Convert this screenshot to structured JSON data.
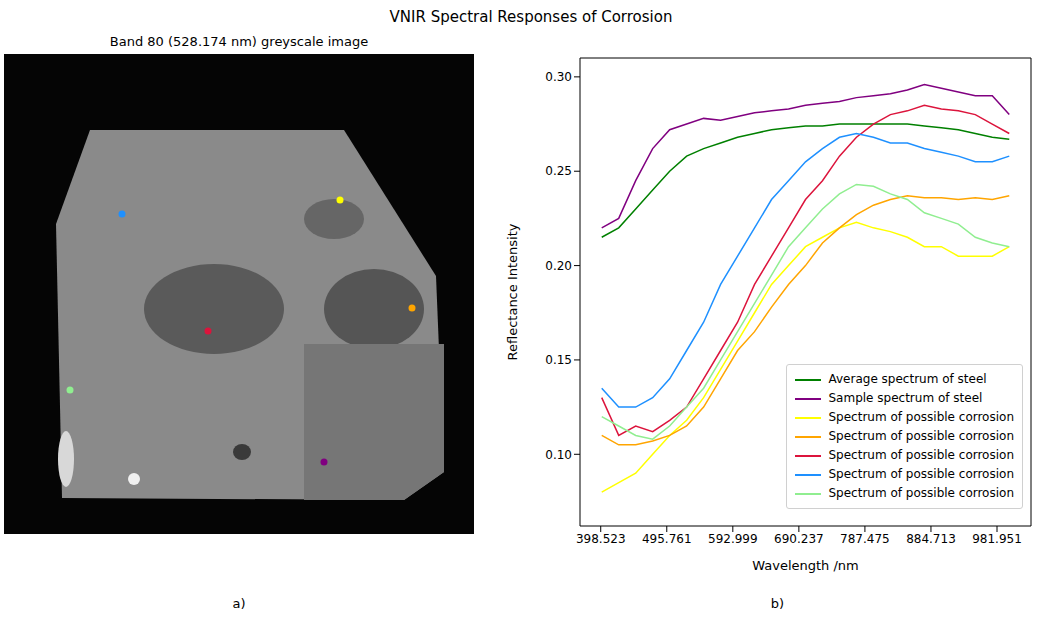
{
  "title": "VNIR Spectral Responses of Corrosion",
  "image_panel": {
    "label": "a)",
    "title": "Band 80 (528.174 nm) greyscale image"
  },
  "chart_data": {
    "label": "b)",
    "type": "line",
    "x_label": "Wavelength /nm",
    "y_label": "Reflectance Intensity",
    "xlim": [
      368,
      1032
    ],
    "ylim": [
      0.062,
      0.31
    ],
    "xticks": [
      398.523,
      495.761,
      592.999,
      690.237,
      787.475,
      884.713,
      981.951
    ],
    "yticks": [
      {
        "value": 0.1,
        "label": "0.10"
      },
      0.15,
      {
        "value": 0.2,
        "label": "0.20"
      },
      0.25,
      {
        "value": 0.3,
        "label": "0.30"
      }
    ],
    "legend": "lower right",
    "x": [
      400,
      425,
      450,
      475,
      500,
      525,
      550,
      575,
      600,
      625,
      650,
      675,
      700,
      725,
      750,
      775,
      800,
      825,
      850,
      875,
      900,
      925,
      950,
      975,
      1000
    ],
    "series": [
      {
        "name": "Average spectrum of steel",
        "color": "#008000",
        "values": [
          0.215,
          0.22,
          0.23,
          0.24,
          0.25,
          0.258,
          0.262,
          0.265,
          0.268,
          0.27,
          0.272,
          0.273,
          0.274,
          0.274,
          0.275,
          0.275,
          0.275,
          0.275,
          0.275,
          0.274,
          0.273,
          0.272,
          0.27,
          0.268,
          0.267
        ]
      },
      {
        "name": "Sample spectrum of steel",
        "color": "#800080",
        "values": [
          0.22,
          0.225,
          0.245,
          0.262,
          0.272,
          0.275,
          0.278,
          0.277,
          0.279,
          0.281,
          0.282,
          0.283,
          0.285,
          0.286,
          0.287,
          0.289,
          0.29,
          0.291,
          0.293,
          0.296,
          0.294,
          0.292,
          0.29,
          0.29,
          0.28
        ]
      },
      {
        "name": "Spectrum of possible corrosion",
        "color": "#ffff00",
        "values": [
          0.08,
          0.085,
          0.09,
          0.1,
          0.11,
          0.118,
          0.13,
          0.145,
          0.16,
          0.175,
          0.19,
          0.2,
          0.21,
          0.215,
          0.22,
          0.223,
          0.22,
          0.218,
          0.215,
          0.21,
          0.21,
          0.205,
          0.205,
          0.205,
          0.21
        ]
      },
      {
        "name": "Spectrum of possible corrosion",
        "color": "#ffa500",
        "values": [
          0.11,
          0.105,
          0.105,
          0.107,
          0.11,
          0.115,
          0.125,
          0.14,
          0.155,
          0.165,
          0.178,
          0.19,
          0.2,
          0.212,
          0.22,
          0.227,
          0.232,
          0.235,
          0.237,
          0.236,
          0.236,
          0.235,
          0.236,
          0.235,
          0.237
        ]
      },
      {
        "name": "Spectrum of possible corrosion",
        "color": "#dc143c",
        "values": [
          0.13,
          0.11,
          0.115,
          0.112,
          0.118,
          0.125,
          0.14,
          0.155,
          0.17,
          0.19,
          0.205,
          0.22,
          0.235,
          0.245,
          0.258,
          0.268,
          0.275,
          0.28,
          0.282,
          0.285,
          0.283,
          0.282,
          0.28,
          0.275,
          0.27
        ]
      },
      {
        "name": "Spectrum of possible corrosion",
        "color": "#1e90ff",
        "values": [
          0.135,
          0.125,
          0.125,
          0.13,
          0.14,
          0.155,
          0.17,
          0.19,
          0.205,
          0.22,
          0.235,
          0.245,
          0.255,
          0.262,
          0.268,
          0.27,
          0.268,
          0.265,
          0.265,
          0.262,
          0.26,
          0.258,
          0.255,
          0.255,
          0.258
        ]
      },
      {
        "name": "Spectrum of possible corrosion",
        "color": "#90ee90",
        "values": [
          0.12,
          0.115,
          0.11,
          0.108,
          0.115,
          0.125,
          0.135,
          0.15,
          0.165,
          0.18,
          0.195,
          0.21,
          0.22,
          0.23,
          0.238,
          0.243,
          0.242,
          0.238,
          0.235,
          0.228,
          0.225,
          0.222,
          0.215,
          0.212,
          0.21
        ]
      }
    ]
  }
}
